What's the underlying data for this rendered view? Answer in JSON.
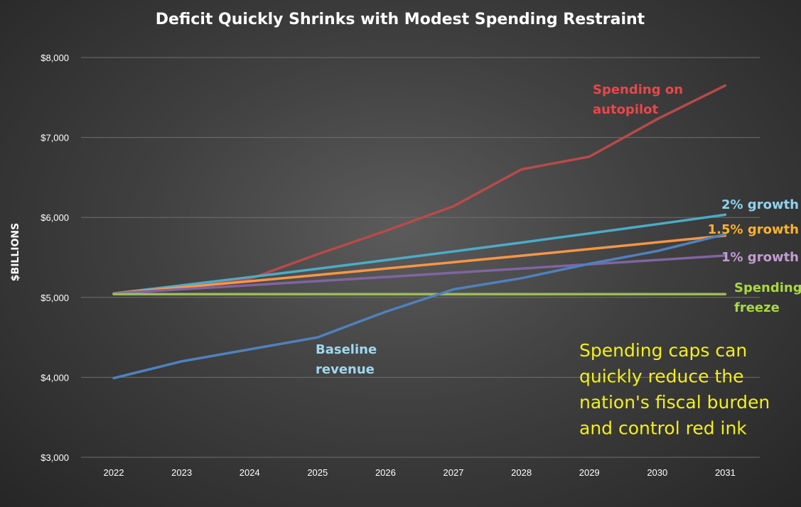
{
  "chart_data": {
    "type": "line",
    "title": "Deficit Quickly Shrinks with Modest Spending Restraint",
    "ylabel": "$BILLIONS",
    "xlabel": "",
    "x": [
      "2022",
      "2023",
      "2024",
      "2025",
      "2026",
      "2027",
      "2028",
      "2029",
      "2030",
      "2031"
    ],
    "ylim": [
      3000,
      8000
    ],
    "yticks": [
      3000,
      4000,
      5000,
      6000,
      7000,
      8000
    ],
    "ytick_labels": [
      "$3,000",
      "$4,000",
      "$5,000",
      "$6,000",
      "$7,000",
      "$8,000"
    ],
    "grid": true,
    "legend": "none",
    "series": [
      {
        "name": "Spending on autopilot",
        "label_lines": [
          "Spending on",
          "autopilot"
        ],
        "color": "#b84a4a",
        "values": [
          5050,
          5150,
          5230,
          5540,
          5830,
          6140,
          6600,
          6760,
          7230,
          7650
        ]
      },
      {
        "name": "2% growth",
        "label_lines": [
          "2% growth"
        ],
        "color": "#4bacc6",
        "values": [
          5050,
          5150,
          5253,
          5358,
          5465,
          5575,
          5686,
          5800,
          5916,
          6034
        ]
      },
      {
        "name": "1.5% growth",
        "label_lines": [
          "1.5% growth"
        ],
        "color": "#f79646",
        "values": [
          5050,
          5126,
          5202,
          5280,
          5360,
          5440,
          5521,
          5604,
          5688,
          5773
        ]
      },
      {
        "name": "1% growth",
        "label_lines": [
          "1% growth"
        ],
        "color": "#8064a2",
        "values": [
          5050,
          5101,
          5152,
          5203,
          5255,
          5308,
          5361,
          5414,
          5468,
          5523
        ]
      },
      {
        "name": "Spending freeze",
        "label_lines": [
          "Spending",
          "freeze"
        ],
        "color": "#9bbb59",
        "values": [
          5040,
          5040,
          5040,
          5040,
          5040,
          5040,
          5040,
          5040,
          5040,
          5040
        ]
      },
      {
        "name": "Baseline revenue",
        "label_lines": [
          "Baseline",
          "revenue"
        ],
        "color": "#4f81bd",
        "values": [
          3990,
          4200,
          4350,
          4500,
          4820,
          5100,
          5240,
          5420,
          5580,
          5790
        ]
      }
    ],
    "annotation": [
      "Spending caps can",
      "quickly reduce the",
      "nation's fiscal burden",
      "and control red ink"
    ]
  },
  "colors": {
    "label_autopilot": "#e8474a",
    "label_2pct": "#8fd3f0",
    "label_15pct": "#f9b233",
    "label_1pct": "#c39bd3",
    "label_freeze": "#a9d843",
    "label_baseline": "#9fd8ef",
    "annotation": "#f2ef1f"
  }
}
